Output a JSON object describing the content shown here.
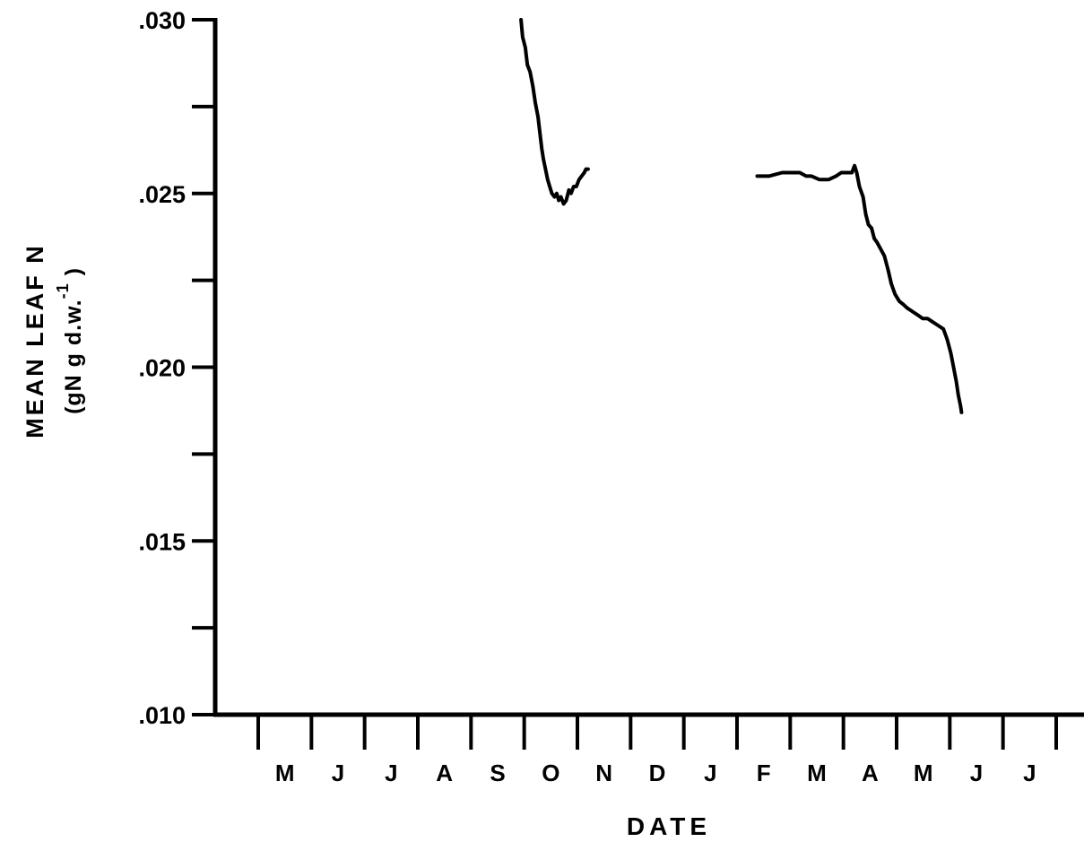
{
  "chart_data": {
    "type": "line",
    "title": "",
    "xlabel": "DATE",
    "ylabel": {
      "line1": "MEAN LEAF N",
      "line2_open": "(",
      "line2_main": "gN g d.w.",
      "line2_sup": "-1",
      "line2_close": ")"
    },
    "ylim": [
      0.01,
      0.03
    ],
    "y_ticks": [
      ".010",
      ".015",
      ".020",
      ".025",
      ".030"
    ],
    "y_minor_ticks": [
      0.0125,
      0.0175,
      0.0225,
      0.0275
    ],
    "month_labels": [
      "M",
      "J",
      "J",
      "A",
      "S",
      "O",
      "N",
      "D",
      "J",
      "F",
      "M",
      "A",
      "M",
      "J",
      "J"
    ],
    "month_domain": [
      0,
      15
    ],
    "grid": false,
    "legend": "none",
    "series": [
      {
        "segments": [
          [
            [
              4.94,
              0.03
            ],
            [
              4.97,
              0.0295
            ],
            [
              5.02,
              0.0292
            ],
            [
              5.06,
              0.0287
            ],
            [
              5.11,
              0.0285
            ],
            [
              5.16,
              0.0281
            ],
            [
              5.21,
              0.0276
            ],
            [
              5.26,
              0.0272
            ],
            [
              5.29,
              0.0268
            ],
            [
              5.33,
              0.0263
            ],
            [
              5.36,
              0.026
            ],
            [
              5.4,
              0.0257
            ],
            [
              5.44,
              0.0254
            ],
            [
              5.48,
              0.0252
            ],
            [
              5.52,
              0.025
            ],
            [
              5.57,
              0.0249
            ],
            [
              5.61,
              0.025
            ],
            [
              5.65,
              0.0248
            ],
            [
              5.69,
              0.0249
            ],
            [
              5.74,
              0.0247
            ],
            [
              5.79,
              0.0248
            ],
            [
              5.84,
              0.0251
            ],
            [
              5.88,
              0.025
            ],
            [
              5.93,
              0.0252
            ],
            [
              5.98,
              0.0252
            ],
            [
              6.03,
              0.0254
            ],
            [
              6.08,
              0.0255
            ],
            [
              6.13,
              0.0256
            ],
            [
              6.16,
              0.0257
            ],
            [
              6.2,
              0.0257
            ]
          ],
          [
            [
              9.38,
              0.0255
            ],
            [
              9.6,
              0.0255
            ],
            [
              9.85,
              0.0256
            ],
            [
              10.03,
              0.0256
            ],
            [
              10.18,
              0.0256
            ],
            [
              10.3,
              0.0255
            ],
            [
              10.4,
              0.0255
            ],
            [
              10.55,
              0.0254
            ],
            [
              10.72,
              0.0254
            ],
            [
              10.86,
              0.0255
            ],
            [
              10.96,
              0.0256
            ],
            [
              11.06,
              0.0256
            ],
            [
              11.16,
              0.0256
            ],
            [
              11.21,
              0.0258
            ],
            [
              11.25,
              0.0256
            ],
            [
              11.3,
              0.0252
            ],
            [
              11.37,
              0.0249
            ],
            [
              11.42,
              0.0244
            ],
            [
              11.47,
              0.0241
            ],
            [
              11.53,
              0.024
            ],
            [
              11.58,
              0.0237
            ],
            [
              11.63,
              0.0236
            ],
            [
              11.7,
              0.0234
            ],
            [
              11.77,
              0.0232
            ],
            [
              11.84,
              0.0228
            ],
            [
              11.9,
              0.0224
            ],
            [
              11.97,
              0.0221
            ],
            [
              12.05,
              0.0219
            ],
            [
              12.13,
              0.0218
            ],
            [
              12.2,
              0.0217
            ],
            [
              12.3,
              0.0216
            ],
            [
              12.4,
              0.0215
            ],
            [
              12.49,
              0.0214
            ],
            [
              12.58,
              0.0214
            ],
            [
              12.68,
              0.0213
            ],
            [
              12.78,
              0.0212
            ],
            [
              12.88,
              0.0211
            ],
            [
              12.95,
              0.0208
            ],
            [
              13.02,
              0.0204
            ],
            [
              13.07,
              0.02
            ],
            [
              13.12,
              0.0196
            ],
            [
              13.16,
              0.0192
            ],
            [
              13.2,
              0.0189
            ],
            [
              13.22,
              0.0187
            ]
          ]
        ]
      }
    ]
  }
}
